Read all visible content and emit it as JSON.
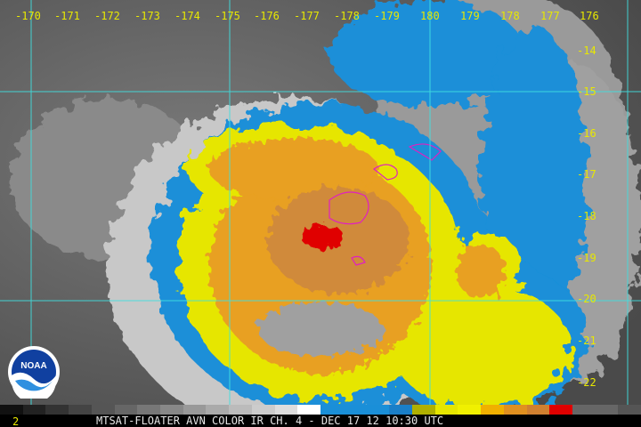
{
  "longitude_labels": [
    "-170",
    "-171",
    "-172",
    "-173",
    "-174",
    "-175",
    "-176",
    "-177",
    "-178",
    "-179",
    "180",
    "179",
    "178",
    "177",
    "176"
  ],
  "latitude_labels": [
    "-14",
    "-15",
    "-16",
    "-17",
    "-18",
    "-19",
    "-20",
    "-21",
    "-22"
  ],
  "footer": {
    "frame_number": "2",
    "caption": "MTSAT-FLOATER AVN COLOR IR CH. 4 - DEC 17 12 10:30 UTC"
  },
  "logo": {
    "text": "NOAA"
  },
  "colors": {
    "grid": "#40e0e0",
    "label": "#e8e800",
    "cold_blue": "#1a8fd8",
    "yellow": "#e6e600",
    "orange": "#e8a020",
    "red": "#e00000",
    "coastline": "#e020c0"
  },
  "color_scale": [
    "#111",
    "#222",
    "#333",
    "#444",
    "#555",
    "#666",
    "#777",
    "#888",
    "#999",
    "#aaa",
    "#bbb",
    "#ccc",
    "#ddd",
    "#fff",
    "#1a8fd8",
    "#1a8fd8",
    "#1a8fd8",
    "#1a7fc8",
    "#b0b000",
    "#e6e600",
    "#f0f000",
    "#f0b000",
    "#e09020",
    "#d08030",
    "#e00000",
    "#666",
    "#666",
    "#555"
  ]
}
